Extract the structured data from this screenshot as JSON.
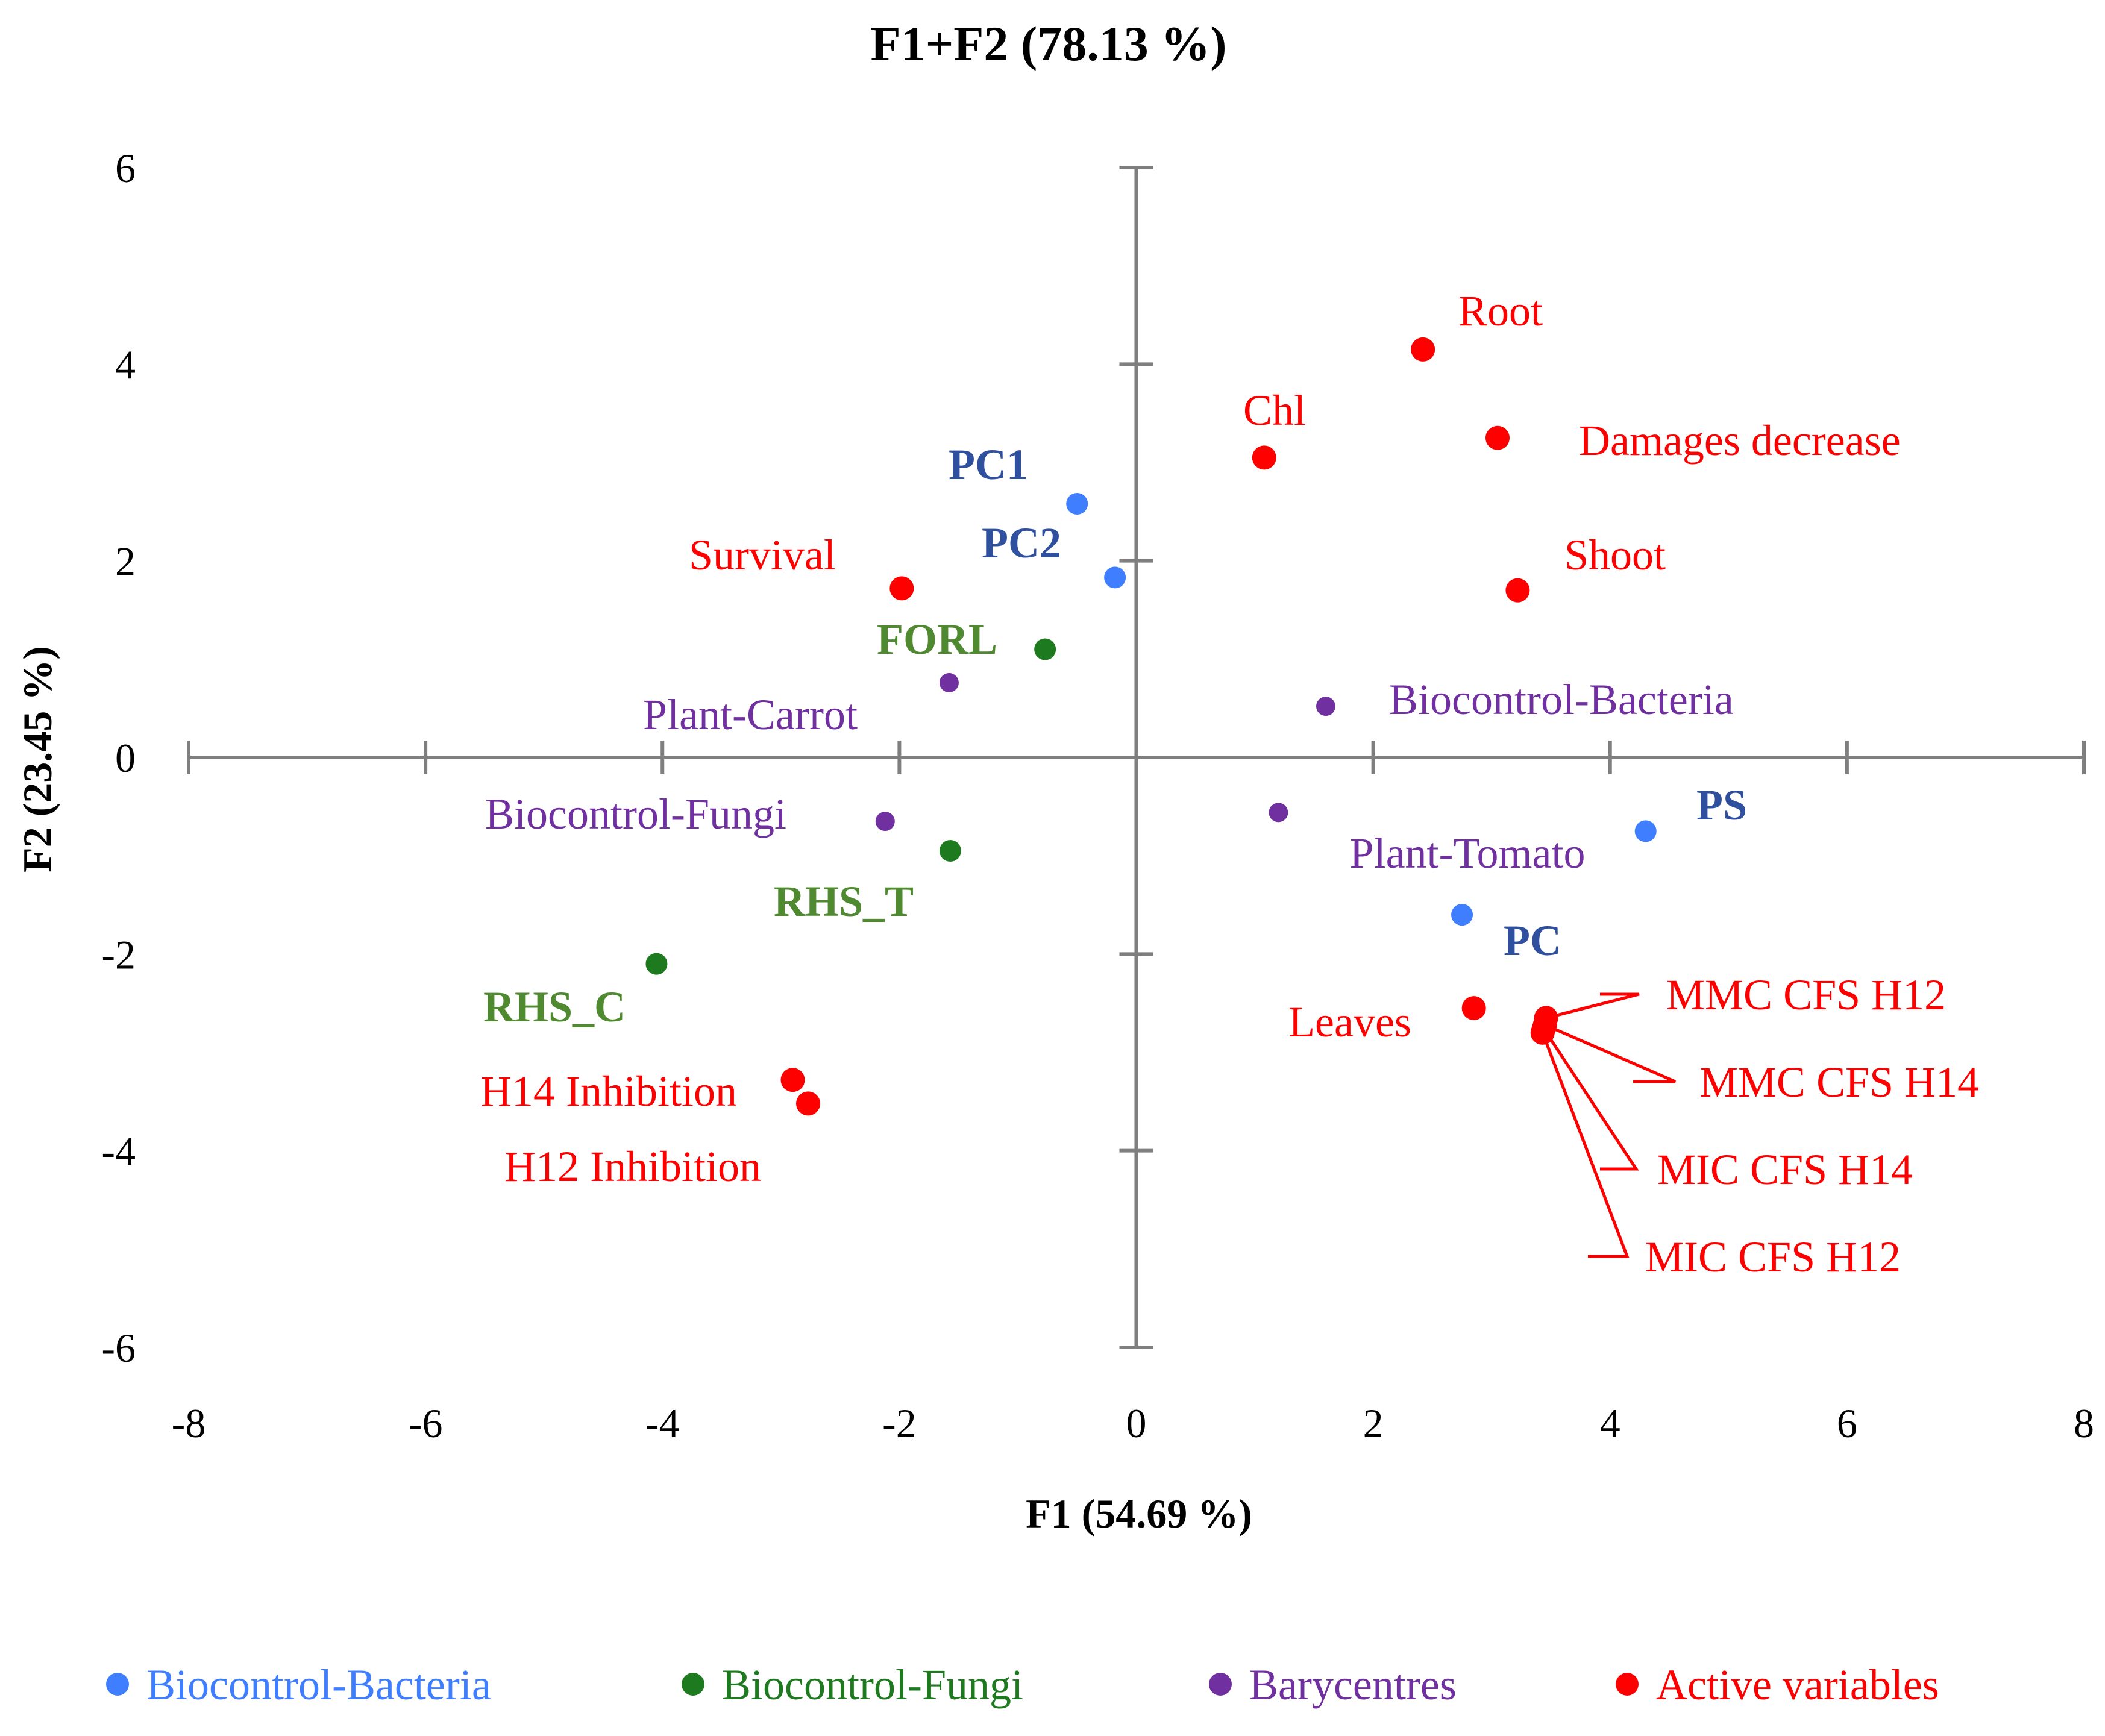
{
  "chart_data": {
    "type": "scatter",
    "title": "F1+F2 (78.13 %)",
    "xlabel": "F1 (54.69 %)",
    "ylabel": "F2 (23.45 %)",
    "xlim": [
      -8,
      8
    ],
    "ylim": [
      -6,
      6
    ],
    "xticks": [
      "-8",
      "-6",
      "-4",
      "-2",
      "0",
      "2",
      "4",
      "6",
      "8"
    ],
    "yticks": [
      "6",
      "4",
      "2",
      "0",
      "-2",
      "-4",
      "-6"
    ],
    "grid": false,
    "legend_position": "bottom",
    "colors": {
      "bacteria": "#3f7fff",
      "bacteria_label": "#2f4f9f",
      "fungi": "#1e7a1e",
      "fungi_label": "#4f8a30",
      "bary": "#7030a0",
      "active": "#ff0000"
    },
    "legend": [
      {
        "name": "Biocontrol-Bacteria",
        "key": "bacteria"
      },
      {
        "name": "Biocontrol-Fungi",
        "key": "fungi"
      },
      {
        "name": "Barycentres",
        "key": "bary"
      },
      {
        "name": "Active variables",
        "key": "active"
      }
    ],
    "series": [
      {
        "name": "Biocontrol-Bacteria",
        "key": "bacteria",
        "points": [
          {
            "label": "PC1",
            "x": -0.5,
            "y": 2.58
          },
          {
            "label": "PC2",
            "x": -0.18,
            "y": 1.83
          },
          {
            "label": "PS",
            "x": 4.3,
            "y": -0.75
          },
          {
            "label": "PC",
            "x": 2.75,
            "y": -1.6
          }
        ]
      },
      {
        "name": "Biocontrol-Fungi",
        "key": "fungi",
        "points": [
          {
            "label": "FORL",
            "x": -0.77,
            "y": 1.1
          },
          {
            "label": "RHS_T",
            "x": -1.57,
            "y": -0.95
          },
          {
            "label": "RHS_C",
            "x": -4.05,
            "y": -2.1
          }
        ]
      },
      {
        "name": "Barycentres",
        "key": "bary",
        "points": [
          {
            "label": "Plant-Carrot",
            "x": -1.58,
            "y": 0.76
          },
          {
            "label": "Biocontrol-Bacteria",
            "x": 1.6,
            "y": 0.52
          },
          {
            "label": "Biocontrol-Fungi",
            "x": -2.12,
            "y": -0.65
          },
          {
            "label": "Plant-Tomato",
            "x": 1.2,
            "y": -0.56
          }
        ]
      },
      {
        "name": "Active variables",
        "key": "active",
        "points": [
          {
            "label": "Root",
            "x": 2.42,
            "y": 4.15
          },
          {
            "label": "Damages decrease",
            "x": 3.05,
            "y": 3.25
          },
          {
            "label": "Chl",
            "x": 1.08,
            "y": 3.05
          },
          {
            "label": "Survival",
            "x": -1.98,
            "y": 1.72
          },
          {
            "label": "Shoot",
            "x": 3.22,
            "y": 1.7
          },
          {
            "label": "Leaves",
            "x": 2.85,
            "y": -2.55
          },
          {
            "label": "MMC CFS H12",
            "x": 3.46,
            "y": -2.65
          },
          {
            "label": "MMC CFS H14",
            "x": 3.45,
            "y": -2.72
          },
          {
            "label": "MIC CFS H14",
            "x": 3.44,
            "y": -2.76
          },
          {
            "label": "MIC CFS H12",
            "x": 3.43,
            "y": -2.8
          },
          {
            "label": "H14 Inhibition",
            "x": -2.9,
            "y": -3.28
          },
          {
            "label": "H12 Inhibition",
            "x": -2.77,
            "y": -3.52
          }
        ]
      }
    ]
  }
}
